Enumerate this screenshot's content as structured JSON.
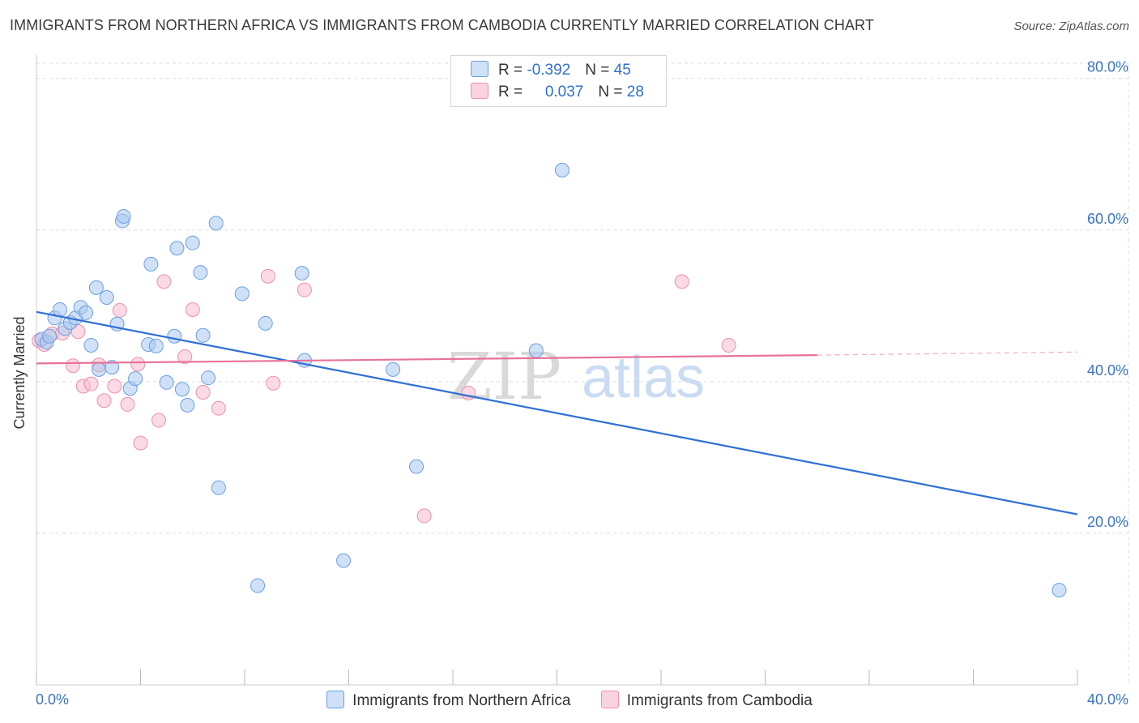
{
  "title": "IMMIGRANTS FROM NORTHERN AFRICA VS IMMIGRANTS FROM CAMBODIA CURRENTLY MARRIED CORRELATION CHART",
  "source": "Source: ZipAtlas.com",
  "watermark": {
    "zip": "ZIP",
    "atlas": "atlas"
  },
  "legend": {
    "row1": {
      "r_label": "R = ",
      "r_value": "-0.392",
      "n_label": "N = ",
      "n_value": "45"
    },
    "row2": {
      "r_label": "R = ",
      "r_value": "0.037",
      "n_label": "N = ",
      "n_value": "28"
    }
  },
  "colors": {
    "blue_fill": "#a9c8f0",
    "blue_stroke": "#6a9ee0",
    "blue_line": "#2f6fd6",
    "pink_fill": "#f7bcd0",
    "pink_stroke": "#ec8fb0",
    "pink_line": "#e8729a",
    "axis_text": "#3b73c8",
    "grid": "#dddddd"
  },
  "chart_data": {
    "type": "scatter",
    "title": "IMMIGRANTS FROM NORTHERN AFRICA VS IMMIGRANTS FROM CAMBODIA CURRENTLY MARRIED CORRELATION CHART",
    "xlabel": "",
    "ylabel": "Currently Married",
    "xlim": [
      0,
      40
    ],
    "ylim": [
      0,
      82
    ],
    "x_tick_labels": [
      "0.0%",
      "40.0%"
    ],
    "y_ticks": [
      20,
      40,
      60,
      80
    ],
    "y_tick_labels": [
      "20.0%",
      "40.0%",
      "60.0%",
      "80.0%"
    ],
    "grid": true,
    "series": [
      {
        "name": "Immigrants from Northern Africa",
        "color": "#a9c8f0",
        "r": -0.392,
        "n": 45,
        "trend": {
          "x": [
            0,
            40
          ],
          "y": [
            49.2,
            22.5
          ]
        },
        "points": [
          [
            0.2,
            45.6
          ],
          [
            0.4,
            45.2
          ],
          [
            0.5,
            46.0
          ],
          [
            0.7,
            48.4
          ],
          [
            0.9,
            49.5
          ],
          [
            1.1,
            47.0
          ],
          [
            1.3,
            47.8
          ],
          [
            1.5,
            48.4
          ],
          [
            1.7,
            49.8
          ],
          [
            1.9,
            49.1
          ],
          [
            2.1,
            44.8
          ],
          [
            2.3,
            52.4
          ],
          [
            2.4,
            41.6
          ],
          [
            2.7,
            51.1
          ],
          [
            2.9,
            41.9
          ],
          [
            3.1,
            47.6
          ],
          [
            3.3,
            61.2
          ],
          [
            3.35,
            61.8
          ],
          [
            3.6,
            39.1
          ],
          [
            3.8,
            40.4
          ],
          [
            4.3,
            44.9
          ],
          [
            4.4,
            55.5
          ],
          [
            4.6,
            44.7
          ],
          [
            5.0,
            39.9
          ],
          [
            5.3,
            46.0
          ],
          [
            5.4,
            57.6
          ],
          [
            5.6,
            39.0
          ],
          [
            5.8,
            36.9
          ],
          [
            6.0,
            58.3
          ],
          [
            6.3,
            54.4
          ],
          [
            6.4,
            46.1
          ],
          [
            6.6,
            40.5
          ],
          [
            6.9,
            60.9
          ],
          [
            7.0,
            26.0
          ],
          [
            7.9,
            51.6
          ],
          [
            8.5,
            13.1
          ],
          [
            8.8,
            47.7
          ],
          [
            10.2,
            54.3
          ],
          [
            10.3,
            42.8
          ],
          [
            11.8,
            16.4
          ],
          [
            13.7,
            41.6
          ],
          [
            14.6,
            28.8
          ],
          [
            19.2,
            44.1
          ],
          [
            20.2,
            67.9
          ],
          [
            39.3,
            12.5
          ]
        ]
      },
      {
        "name": "Immigrants from Cambodia",
        "color": "#f7bcd0",
        "r": 0.037,
        "n": 28,
        "trend": {
          "x": [
            0,
            30
          ],
          "y": [
            42.4,
            43.5
          ]
        },
        "trend_dashed": {
          "x": [
            30,
            40
          ],
          "y": [
            43.5,
            43.9
          ]
        },
        "points": [
          [
            0.1,
            45.4
          ],
          [
            0.6,
            46.3
          ],
          [
            1.0,
            46.4
          ],
          [
            1.4,
            42.1
          ],
          [
            1.6,
            46.6
          ],
          [
            1.8,
            39.4
          ],
          [
            2.1,
            39.7
          ],
          [
            2.4,
            42.2
          ],
          [
            2.6,
            37.5
          ],
          [
            3.0,
            39.4
          ],
          [
            3.2,
            49.4
          ],
          [
            3.5,
            37.0
          ],
          [
            3.9,
            42.3
          ],
          [
            4.0,
            31.9
          ],
          [
            4.7,
            34.9
          ],
          [
            4.9,
            53.2
          ],
          [
            5.7,
            43.3
          ],
          [
            6.0,
            49.5
          ],
          [
            6.4,
            38.6
          ],
          [
            7.0,
            36.5
          ],
          [
            8.9,
            53.9
          ],
          [
            9.1,
            39.8
          ],
          [
            10.3,
            52.1
          ],
          [
            16.6,
            38.5
          ],
          [
            14.9,
            22.3
          ],
          [
            24.8,
            53.2
          ],
          [
            26.6,
            44.8
          ],
          [
            0.3,
            44.9
          ]
        ]
      }
    ]
  }
}
